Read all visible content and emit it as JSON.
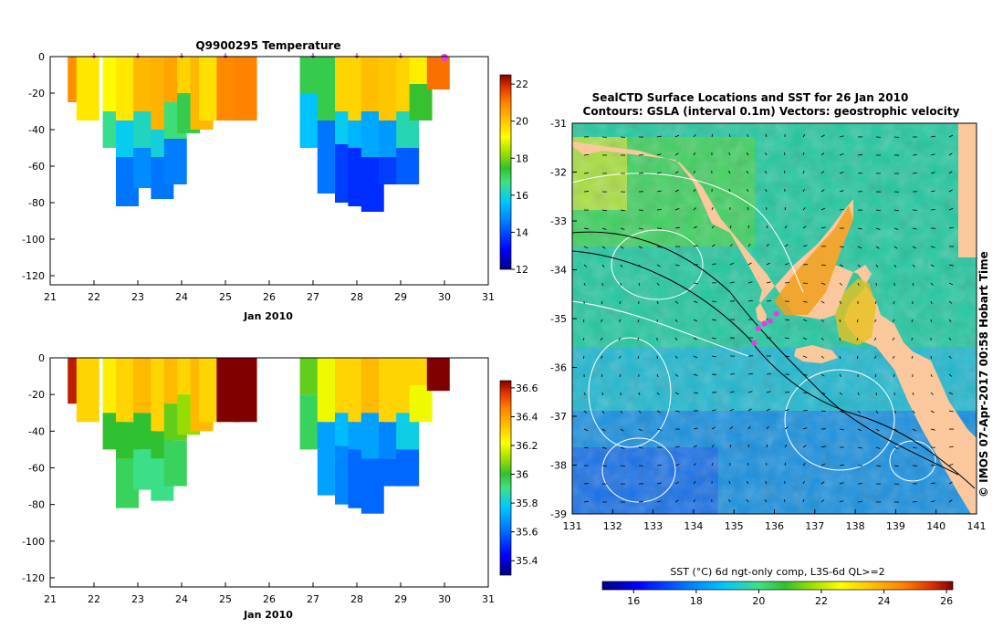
{
  "chart_data": [
    {
      "type": "heatmap",
      "title": "Q9900295  Temperature",
      "xlabel": "Jan 2010",
      "ylabel": "",
      "xlim": [
        21,
        31
      ],
      "ylim": [
        -125,
        0
      ],
      "xticks": [
        "21",
        "22",
        "23",
        "24",
        "25",
        "26",
        "27",
        "28",
        "29",
        "30",
        "31"
      ],
      "yticks": [
        "0",
        "-20",
        "-40",
        "-60",
        "-80",
        "-100",
        "-120"
      ],
      "profile_markers_x": [
        22,
        23,
        24,
        25,
        27,
        28,
        29
      ],
      "current_marker_x": 30,
      "colorbar": {
        "range": [
          12,
          22.5
        ],
        "ticks": [
          "22",
          "20",
          "18",
          "16",
          "14",
          "12"
        ],
        "colors": [
          "#00007f",
          "#0000ff",
          "#0080ff",
          "#00c8ff",
          "#40e080",
          "#30c030",
          "#a0e000",
          "#ffff00",
          "#ffc000",
          "#ff8000",
          "#e03000",
          "#800000"
        ]
      },
      "profiles": [
        {
          "x": 21.5,
          "max_depth": 25,
          "bands": [
            [
              0,
              25,
              20.8
            ]
          ]
        },
        {
          "x": 21.7,
          "max_depth": 35,
          "bands": [
            [
              0,
              35,
              19.5
            ]
          ]
        },
        {
          "x": 22.3,
          "max_depth": 50,
          "bands": [
            [
              0,
              30,
              19.2
            ],
            [
              30,
              50,
              16.6
            ]
          ]
        },
        {
          "x": 22.6,
          "max_depth": 82,
          "bands": [
            [
              0,
              35,
              19.5
            ],
            [
              35,
              55,
              15.8
            ],
            [
              55,
              82,
              14.5
            ]
          ]
        },
        {
          "x": 23.0,
          "max_depth": 72,
          "bands": [
            [
              0,
              30,
              20.2
            ],
            [
              30,
              50,
              16.2
            ],
            [
              50,
              72,
              14.8
            ]
          ]
        },
        {
          "x": 23.4,
          "max_depth": 78,
          "bands": [
            [
              0,
              40,
              20.3
            ],
            [
              40,
              55,
              16.0
            ],
            [
              55,
              78,
              14.5
            ]
          ]
        },
        {
          "x": 23.7,
          "max_depth": 70,
          "bands": [
            [
              0,
              25,
              20.5
            ],
            [
              25,
              45,
              16.8
            ],
            [
              45,
              70,
              14.6
            ]
          ]
        },
        {
          "x": 24.0,
          "max_depth": 42,
          "bands": [
            [
              0,
              20,
              19.8
            ],
            [
              20,
              42,
              17.2
            ]
          ]
        },
        {
          "x": 24.3,
          "max_depth": 40,
          "bands": [
            [
              0,
              40,
              20.2
            ]
          ]
        },
        {
          "x": 24.5,
          "max_depth": 35,
          "bands": [
            [
              0,
              35,
              19.6
            ]
          ]
        },
        {
          "x": 24.9,
          "max_depth": 35,
          "bands": [
            [
              0,
              35,
              20.9
            ]
          ]
        },
        {
          "x": 25.3,
          "max_depth": 35,
          "bands": [
            [
              0,
              35,
              21.0
            ]
          ]
        },
        {
          "x": 26.8,
          "max_depth": 50,
          "bands": [
            [
              0,
              20,
              17.2
            ],
            [
              20,
              50,
              15.6
            ]
          ]
        },
        {
          "x": 27.2,
          "max_depth": 75,
          "bands": [
            [
              0,
              35,
              17.2
            ],
            [
              35,
              75,
              14.5
            ]
          ]
        },
        {
          "x": 27.6,
          "max_depth": 80,
          "bands": [
            [
              0,
              30,
              19.8
            ],
            [
              30,
              48,
              15.8
            ],
            [
              48,
              80,
              13.8
            ]
          ]
        },
        {
          "x": 27.9,
          "max_depth": 82,
          "bands": [
            [
              0,
              35,
              19.8
            ],
            [
              35,
              50,
              15.4
            ],
            [
              50,
              82,
              13.6
            ]
          ]
        },
        {
          "x": 28.2,
          "max_depth": 85,
          "bands": [
            [
              0,
              30,
              20.1
            ],
            [
              30,
              55,
              15.2
            ],
            [
              55,
              85,
              13.6
            ]
          ]
        },
        {
          "x": 28.6,
          "max_depth": 70,
          "bands": [
            [
              0,
              35,
              20.0
            ],
            [
              35,
              55,
              15.0
            ],
            [
              55,
              70,
              13.8
            ]
          ]
        },
        {
          "x": 29.0,
          "max_depth": 70,
          "bands": [
            [
              0,
              30,
              19.8
            ],
            [
              30,
              50,
              16.3
            ],
            [
              50,
              70,
              14.2
            ]
          ]
        },
        {
          "x": 29.3,
          "max_depth": 35,
          "bands": [
            [
              0,
              15,
              19.4
            ],
            [
              15,
              35,
              17.5
            ]
          ]
        },
        {
          "x": 29.7,
          "max_depth": 18,
          "bands": [
            [
              0,
              18,
              21.2
            ]
          ]
        }
      ]
    },
    {
      "type": "heatmap",
      "title": "",
      "xlabel": "Jan 2010",
      "ylabel": "",
      "xlim": [
        21,
        31
      ],
      "ylim": [
        -125,
        0
      ],
      "xticks": [
        "21",
        "22",
        "23",
        "24",
        "25",
        "26",
        "27",
        "28",
        "29",
        "30",
        "31"
      ],
      "yticks": [
        "0",
        "-20",
        "-40",
        "-60",
        "-80",
        "-100",
        "-120"
      ],
      "colorbar": {
        "range": [
          35.3,
          36.65
        ],
        "ticks": [
          "36.6",
          "36.4",
          "36.2",
          "36",
          "35.8",
          "35.6",
          "35.4"
        ],
        "colors": [
          "#00007f",
          "#0000ff",
          "#0080ff",
          "#00c8ff",
          "#40e080",
          "#30c030",
          "#a0e000",
          "#ffff00",
          "#ffc000",
          "#ff8000",
          "#e03000",
          "#800000"
        ]
      },
      "profiles": [
        {
          "x": 21.5,
          "max_depth": 25,
          "bands": [
            [
              0,
              25,
              36.6
            ]
          ]
        },
        {
          "x": 21.7,
          "max_depth": 35,
          "bands": [
            [
              0,
              35,
              36.3
            ]
          ]
        },
        {
          "x": 22.3,
          "max_depth": 50,
          "bands": [
            [
              0,
              30,
              36.25
            ],
            [
              30,
              50,
              36.0
            ]
          ]
        },
        {
          "x": 22.6,
          "max_depth": 82,
          "bands": [
            [
              0,
              35,
              36.3
            ],
            [
              35,
              55,
              36.0
            ],
            [
              55,
              82,
              35.95
            ]
          ]
        },
        {
          "x": 23.0,
          "max_depth": 72,
          "bands": [
            [
              0,
              30,
              36.35
            ],
            [
              30,
              50,
              36.0
            ],
            [
              50,
              72,
              35.9
            ]
          ]
        },
        {
          "x": 23.4,
          "max_depth": 78,
          "bands": [
            [
              0,
              40,
              36.3
            ],
            [
              40,
              55,
              36.0
            ],
            [
              55,
              78,
              35.9
            ]
          ]
        },
        {
          "x": 23.7,
          "max_depth": 70,
          "bands": [
            [
              0,
              25,
              36.35
            ],
            [
              25,
              45,
              36.05
            ],
            [
              45,
              70,
              35.95
            ]
          ]
        },
        {
          "x": 24.0,
          "max_depth": 42,
          "bands": [
            [
              0,
              20,
              36.3
            ],
            [
              20,
              42,
              36.1
            ]
          ]
        },
        {
          "x": 24.3,
          "max_depth": 40,
          "bands": [
            [
              0,
              40,
              36.35
            ]
          ]
        },
        {
          "x": 24.5,
          "max_depth": 35,
          "bands": [
            [
              0,
              35,
              36.3
            ]
          ]
        },
        {
          "x": 24.9,
          "max_depth": 35,
          "bands": [
            [
              0,
              35,
              36.65
            ]
          ]
        },
        {
          "x": 25.3,
          "max_depth": 35,
          "bands": [
            [
              0,
              35,
              36.65
            ]
          ]
        },
        {
          "x": 26.8,
          "max_depth": 50,
          "bands": [
            [
              0,
              20,
              36.05
            ],
            [
              20,
              50,
              35.95
            ]
          ]
        },
        {
          "x": 27.2,
          "max_depth": 75,
          "bands": [
            [
              0,
              35,
              36.2
            ],
            [
              35,
              75,
              35.7
            ]
          ]
        },
        {
          "x": 27.6,
          "max_depth": 80,
          "bands": [
            [
              0,
              30,
              36.3
            ],
            [
              30,
              48,
              35.75
            ],
            [
              48,
              80,
              35.65
            ]
          ]
        },
        {
          "x": 27.9,
          "max_depth": 82,
          "bands": [
            [
              0,
              35,
              36.3
            ],
            [
              35,
              50,
              35.7
            ],
            [
              50,
              82,
              35.6
            ]
          ]
        },
        {
          "x": 28.2,
          "max_depth": 85,
          "bands": [
            [
              0,
              30,
              36.35
            ],
            [
              30,
              55,
              35.7
            ],
            [
              55,
              85,
              35.6
            ]
          ]
        },
        {
          "x": 28.6,
          "max_depth": 70,
          "bands": [
            [
              0,
              35,
              36.3
            ],
            [
              35,
              55,
              35.65
            ],
            [
              55,
              70,
              35.6
            ]
          ]
        },
        {
          "x": 29.0,
          "max_depth": 70,
          "bands": [
            [
              0,
              30,
              36.3
            ],
            [
              30,
              50,
              35.8
            ],
            [
              50,
              70,
              35.6
            ]
          ]
        },
        {
          "x": 29.3,
          "max_depth": 35,
          "bands": [
            [
              0,
              15,
              36.3
            ],
            [
              15,
              35,
              36.2
            ]
          ]
        },
        {
          "x": 29.7,
          "max_depth": 18,
          "bands": [
            [
              0,
              18,
              36.65
            ]
          ]
        }
      ]
    },
    {
      "type": "heatmap",
      "title": "SealCTD Surface Locations and SST for 26 Jan 2010",
      "subtitle": "Contours: GSLA (interval 0.1m)  Vectors: geostrophic velocity",
      "xlabel": "",
      "ylabel": "",
      "xlim": [
        131,
        141
      ],
      "ylim": [
        -39,
        -31
      ],
      "xticks": [
        "131",
        "132",
        "133",
        "134",
        "135",
        "136",
        "137",
        "138",
        "139",
        "140",
        "141"
      ],
      "yticks": [
        "-31",
        "-32",
        "-33",
        "-34",
        "-35",
        "-36",
        "-37",
        "-38",
        "-39"
      ],
      "colorbar": {
        "label": "SST (°C) 6d ngt-only comp, L3S-6d QL>=2",
        "range": [
          15,
          26.2
        ],
        "ticks": [
          "16",
          "18",
          "20",
          "22",
          "24",
          "26"
        ],
        "colors": [
          "#00007f",
          "#0000ff",
          "#0080ff",
          "#00c8ff",
          "#40e080",
          "#30c030",
          "#a0e000",
          "#ffff00",
          "#ffc000",
          "#ff8000",
          "#e03000",
          "#800000"
        ]
      },
      "seal_locations": [
        [
          135.5,
          -35.5
        ],
        [
          135.6,
          -35.2
        ],
        [
          135.75,
          -35.1
        ],
        [
          135.9,
          -35.05
        ],
        [
          136.05,
          -34.9
        ]
      ],
      "stamp": "© IMOS 07-Apr-2017 00:58 Hobart Time"
    }
  ]
}
